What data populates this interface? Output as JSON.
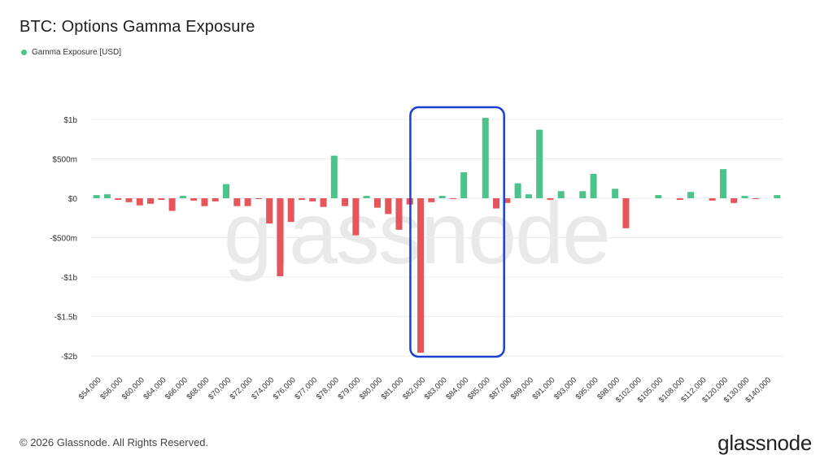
{
  "chart_data": {
    "type": "bar",
    "title": "BTC: Options Gamma Exposure",
    "legend": {
      "label": "Gamma Exposure [USD]",
      "placement": "top-left"
    },
    "ylim": [
      -2.1,
      1.1
    ],
    "yticks": [
      {
        "value": 1,
        "label": "$1b"
      },
      {
        "value": 0.5,
        "label": "$500m"
      },
      {
        "value": 0,
        "label": "$0"
      },
      {
        "value": -0.5,
        "label": "-$500m"
      },
      {
        "value": -1,
        "label": "-$1b"
      },
      {
        "value": -1.5,
        "label": "-$1.5b"
      },
      {
        "value": -2,
        "label": "-$2b"
      }
    ],
    "grid": true,
    "watermark": "glassnode",
    "series": [
      {
        "values": [
          0.04,
          0.05,
          -0.02,
          -0.05,
          -0.09,
          -0.07,
          -0.02,
          -0.16,
          0.03,
          -0.03,
          -0.1,
          -0.04,
          0.18,
          -0.1,
          -0.1,
          -0.01,
          -0.32,
          -0.99,
          -0.3,
          -0.02,
          -0.04,
          -0.11,
          0.54,
          -0.1,
          -0.47,
          0.03,
          -0.12,
          -0.2,
          -0.4,
          -0.08,
          -1.96,
          -0.05,
          0.03,
          -0.01,
          0.33,
          0.0,
          1.02,
          -0.13,
          -0.06,
          0.19,
          0.05,
          0.87,
          -0.02,
          0.09,
          0.0,
          0.09,
          0.31,
          0.0,
          0.12,
          -0.38,
          0.0,
          0.0,
          0.04,
          0.0,
          -0.02,
          0.08,
          0.0,
          -0.03,
          0.37,
          -0.06,
          0.03,
          -0.01,
          0.0,
          0.04
        ]
      }
    ],
    "x_tick_labels": [
      "$54,000",
      "$56,000",
      "$60,000",
      "$64,000",
      "$66,000",
      "$68,000",
      "$70,000",
      "$72,000",
      "$74,000",
      "$76,000",
      "$77,000",
      "$78,000",
      "$79,000",
      "$80,000",
      "$81,000",
      "$82,000",
      "$83,000",
      "$84,000",
      "$85,000",
      "$87,000",
      "$89,000",
      "$91,000",
      "$93,000",
      "$95,000",
      "$98,000",
      "$102,000",
      "$105,000",
      "$108,000",
      "$112,000",
      "$120,000",
      "$130,000",
      "$140,000"
    ],
    "x_tick_every": 2,
    "colors": {
      "positive": "#4cc38a",
      "negative": "#e5555a",
      "highlight": "#1c3fd1",
      "grid": "#ececec",
      "watermark": "#e9e9e9"
    },
    "highlight_range": [
      30,
      37
    ]
  },
  "footer": {
    "copyright": "© 2026 Glassnode. All Rights Reserved."
  },
  "brand": {
    "logo_text": "glassnode"
  }
}
